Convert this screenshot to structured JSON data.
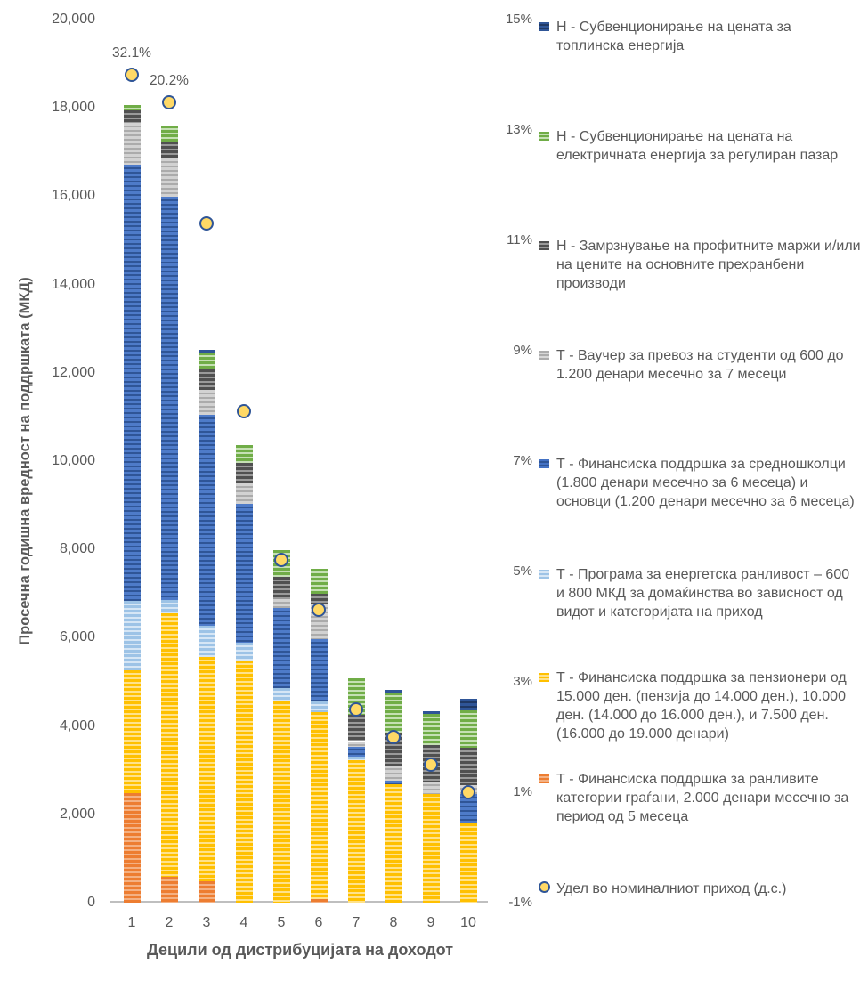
{
  "chart_data": {
    "type": "bar",
    "stacked": true,
    "title": "",
    "xlabel": "Децили од дистрибуцијата на доходот",
    "ylabel": "Просечна годишна вредност на поддршката (МКД)",
    "categories": [
      "1",
      "2",
      "3",
      "4",
      "5",
      "6",
      "7",
      "8",
      "9",
      "10"
    ],
    "grid": false,
    "legend_position": "right",
    "left_axis": {
      "min": 0,
      "max": 20000,
      "step": 2000,
      "tick_labels": [
        "20,000",
        "18,000",
        "16,000",
        "14,000",
        "12,000",
        "10,000",
        "8,000",
        "6,000",
        "4,000",
        "2,000",
        "0"
      ]
    },
    "right_axis": {
      "min": -1,
      "max": 15,
      "step": 2,
      "tick_labels": [
        "15%",
        "13%",
        "11%",
        "9%",
        "7%",
        "5%",
        "3%",
        "1%",
        "-1%"
      ]
    },
    "series": [
      {
        "name": "Т - Финансиска поддршка за ранливите категории граѓани, 2.000 денари месечно за период од 5 месеца",
        "color": "#ED7D31",
        "stripe": "#F4B183",
        "values": [
          2480,
          585,
          485,
          0,
          0,
          80,
          0,
          0,
          0,
          0
        ]
      },
      {
        "name": "Т - Финансиска поддршка за пензионери од 15.000 ден. (пензија до 14.000 ден.), 10.000 ден. (14.000 до 16.000 ден.), и 7.500 ден. (16.000 до 19.000 денари)",
        "color": "#FFC000",
        "stripe": "#FFE28A",
        "values": [
          2780,
          5965,
          5080,
          5480,
          4556,
          4235,
          3230,
          2690,
          2460,
          1790
        ]
      },
      {
        "name": "Т - Програма за енергетска ранливост – 600 и 800 МКД за домаќинства во зависност од видот и категоријата на приход",
        "color": "#9DC3E6",
        "stripe": "#D6E6F5",
        "values": [
          1580,
          310,
          705,
          410,
          300,
          240,
          80,
          0,
          0,
          0
        ]
      },
      {
        "name": "Т - Финансиска поддршка за средношколци (1.800 денари месечно за 6 месеца) и основци (1.200 денари месечно за 6 месеца)",
        "color": "#4E7BC9",
        "stripe": "#2F5597",
        "values": [
          9870,
          9130,
          4780,
          3140,
          1810,
          1410,
          230,
          70,
          0,
          670
        ]
      },
      {
        "name": "Т - Ваучер за превоз на студенти од 600 до 1.200 денари месечно за 7 месеци",
        "color": "#D2D2D2",
        "stripe": "#ABABAB",
        "values": [
          950,
          870,
          560,
          470,
          205,
          790,
          120,
          340,
          280,
          200
        ]
      },
      {
        "name": "Н - Замрзнување на профитните маржи и/или на цените на основните прехранбени производи",
        "color": "#505050",
        "stripe": "#9A9A9A",
        "values": [
          280,
          380,
          465,
          460,
          505,
          240,
          590,
          750,
          830,
          850
        ]
      },
      {
        "name": "Н - Субвенционирање на цената на електричната енергија за регулиран пазар",
        "color": "#70AD47",
        "stripe": "#C5E0B4",
        "values": [
          120,
          360,
          385,
          400,
          600,
          565,
          840,
          900,
          700,
          850
        ]
      },
      {
        "name": "Н - Субвенционирање на цената за топлинска енергија",
        "color": "#2F5597",
        "stripe": "#1F3864",
        "values": [
          0,
          0,
          60,
          0,
          0,
          0,
          0,
          60,
          60,
          260
        ]
      }
    ],
    "markers": {
      "name": "Удел во номиналниот приход (д.с.)",
      "axis": "right",
      "unit": "%",
      "plotted_values": [
        14.0,
        13.5,
        11.3,
        7.9,
        5.2,
        4.3,
        2.5,
        2.0,
        1.5,
        1.0
      ],
      "shown_labels": {
        "0": "32.1%",
        "1": "20.2%"
      },
      "fill": "#FFD966",
      "border": "#2F5597"
    }
  },
  "legend": {
    "items": [
      {
        "shape": "square",
        "color": "#2F5597",
        "stripe": "#1F3864",
        "label": "Н - Субвенционирање на цената за топлинска енергија"
      },
      {
        "shape": "square",
        "color": "#70AD47",
        "stripe": "#C5E0B4",
        "label": "Н - Субвенционирање на цената на електричната енергија за регулиран пазар"
      },
      {
        "shape": "square",
        "color": "#505050",
        "stripe": "#9A9A9A",
        "label": "Н - Замрзнување на профитните маржи и/или на цените на основните прехранбени производи"
      },
      {
        "shape": "square",
        "color": "#ACACAC",
        "stripe": "#D8D8D8",
        "label": "Т - Ваучер за превоз на студенти од 600 до 1.200 денари месечно за 7 месеци"
      },
      {
        "shape": "square",
        "color": "#4472C4",
        "stripe": "#2F5597",
        "label": "Т - Финансиска поддршка за средношколци (1.800 денари месечно за 6 месеца) и основци (1.200 денари месечно за 6 месеца)"
      },
      {
        "shape": "square",
        "color": "#9DC3E6",
        "stripe": "#D6E6F5",
        "label": "Т - Програма за енергетска ранливост – 600 и 800 МКД за домаќинства во зависност од видот и категоријата на приход"
      },
      {
        "shape": "square",
        "color": "#FFC000",
        "stripe": "#FFE28A",
        "label": "Т - Финансиска поддршка за пензионери од 15.000 ден. (пензија до 14.000 ден.), 10.000 ден. (14.000 до 16.000 ден.), и 7.500 ден. (16.000 до 19.000 денари)"
      },
      {
        "shape": "square",
        "color": "#ED7D31",
        "stripe": "#F4B183",
        "label": "Т - Финансиска поддршка за ранливите категории граѓани, 2.000 денари месечно за период од 5 месеца"
      },
      {
        "shape": "circle",
        "color": "#FFD966",
        "stripe": "#2F5597",
        "label": "Удел во номиналниот приход (д.с.)"
      }
    ]
  }
}
